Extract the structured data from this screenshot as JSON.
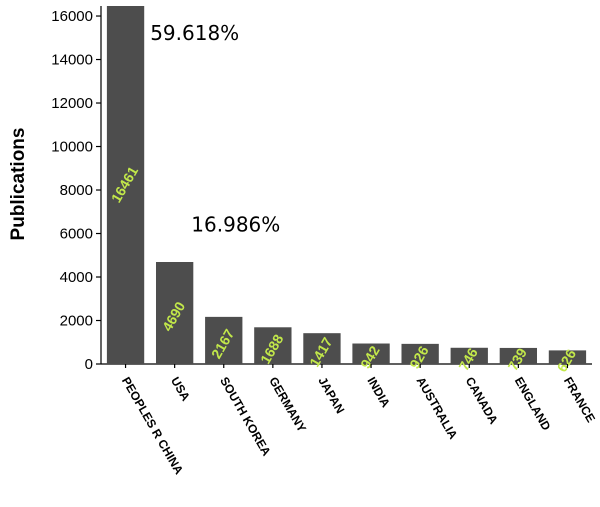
{
  "chart_data": {
    "type": "bar",
    "categories": [
      "PEOPLES R CHINA",
      "USA",
      "SOUTH KOREA",
      "GERMANY",
      "JAPAN",
      "INDIA",
      "AUSTRALIA",
      "CANADA",
      "ENGLAND",
      "FRANCE"
    ],
    "values": [
      16461,
      4690,
      2167,
      1688,
      1417,
      942,
      926,
      746,
      739,
      626
    ],
    "value_labels": [
      "16461",
      "4690",
      "2167",
      "1688",
      "1417",
      "942",
      "926",
      "746",
      "739",
      "626"
    ],
    "title": "",
    "xlabel": "",
    "ylabel": "Publications",
    "ylim": [
      0,
      16461
    ],
    "yticks": [
      0,
      2000,
      4000,
      6000,
      8000,
      10000,
      12000,
      14000,
      16000
    ],
    "grid": false,
    "annotations": [
      {
        "text": "59.618%",
        "category": "PEOPLES R CHINA",
        "at_value": 14900
      },
      {
        "text": "16.986%",
        "category": "USA",
        "at_value": 6100
      }
    ],
    "colors": {
      "bar": "#4d4d4d",
      "value_label": "#c2e84a",
      "axis": "#000000"
    }
  }
}
